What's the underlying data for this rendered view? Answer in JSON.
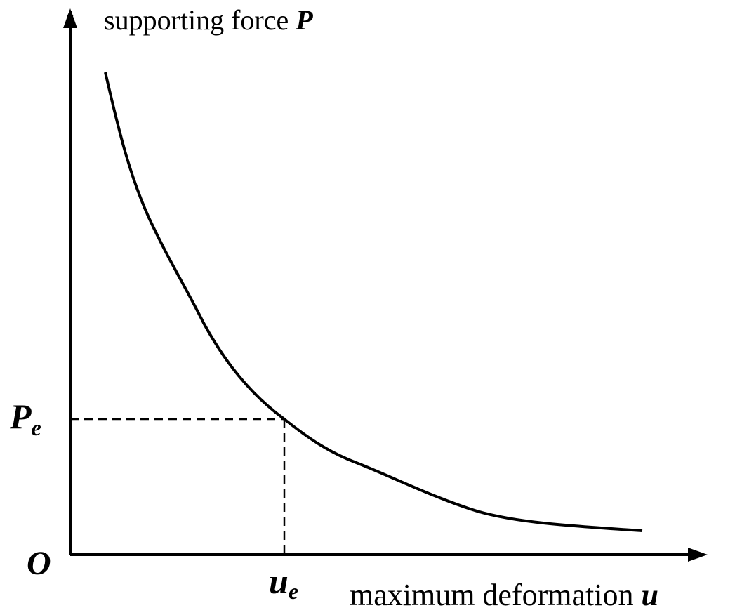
{
  "y_axis_label": {
    "text": "supporting force",
    "symbol": "P"
  },
  "x_axis_label": {
    "text": "maximum deformation",
    "symbol": "u"
  },
  "origin_label": "O",
  "y_marker": {
    "symbol": "P",
    "subscript": "e"
  },
  "x_marker": {
    "symbol": "u",
    "subscript": "e"
  }
}
